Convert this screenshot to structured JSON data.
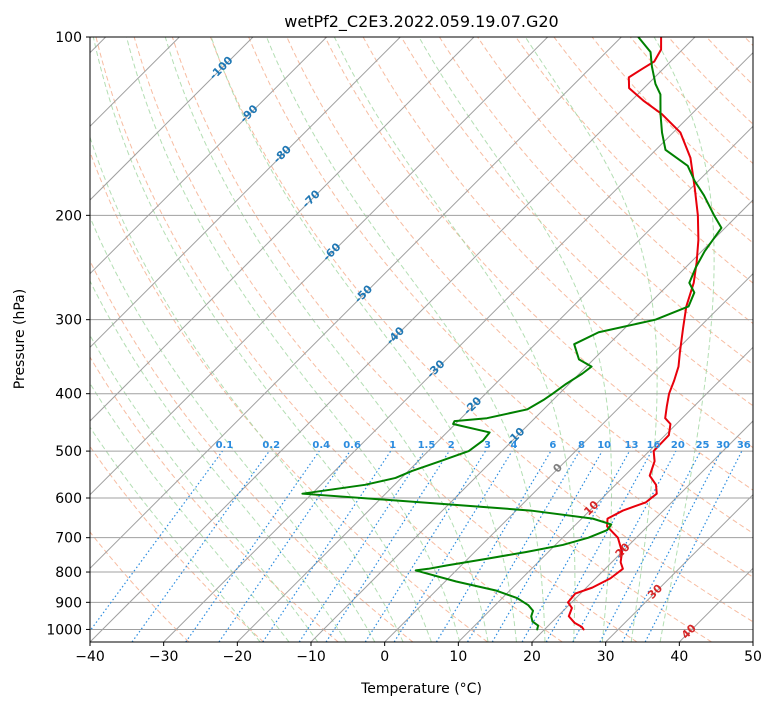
{
  "chart_data": {
    "type": "line",
    "subtype": "skew-T log-P diagram",
    "title": "wetPf2_C2E3.2022.059.19.07.G20",
    "xlabel": "Temperature (°C)",
    "ylabel": "Pressure (hPa)",
    "xlim": [
      -40,
      50
    ],
    "ylim": [
      1050,
      100
    ],
    "y_scale": "log",
    "x_ticks": [
      "−40",
      "−30",
      "−20",
      "−10",
      "0",
      "10",
      "20",
      "30",
      "40",
      "50"
    ],
    "y_ticks": [
      "100",
      "200",
      "300",
      "400",
      "500",
      "600",
      "700",
      "800",
      "900",
      "1000"
    ],
    "grid": true,
    "colors": {
      "temperature": "#e8000b",
      "dewpoint": "#008000",
      "isotherms": "#a0a0a0",
      "dry_adiabats": "#f4a582",
      "moist_adiabats": "#a6d8a6",
      "mixing_ratio": "#2b8cdf",
      "isotherm_labels": "#1f77b4",
      "zero_isotherm_label": "#808080",
      "warm_isotherm_labels": "#d62728"
    },
    "isotherm_labels": [
      {
        "value": "-100",
        "anchor": 100,
        "color": "blue"
      },
      {
        "value": "-90",
        "anchor": 100,
        "color": "blue"
      },
      {
        "value": "-80",
        "anchor": 100,
        "color": "blue"
      },
      {
        "value": "-70",
        "anchor": 100,
        "color": "blue"
      },
      {
        "value": "-60",
        "anchor": 100,
        "color": "blue"
      },
      {
        "value": "-50",
        "anchor": 100,
        "color": "blue"
      },
      {
        "value": "-40",
        "anchor": 100,
        "color": "blue"
      },
      {
        "value": "-30",
        "anchor": 100,
        "color": "blue"
      },
      {
        "value": "-20",
        "anchor": 100,
        "color": "blue"
      },
      {
        "value": "-10",
        "anchor": 100,
        "color": "blue"
      },
      {
        "value": "0",
        "anchor": 100,
        "color": "gray"
      },
      {
        "value": "10",
        "anchor": 100,
        "color": "red"
      },
      {
        "value": "20",
        "anchor": 100,
        "color": "red"
      },
      {
        "value": "30",
        "anchor": 100,
        "color": "red"
      },
      {
        "value": "40",
        "anchor": 100,
        "color": "red"
      }
    ],
    "mixing_ratio_labels": [
      "0.1",
      "0.2",
      "0.4",
      "0.6",
      "1",
      "1.5",
      "2",
      "3",
      "4",
      "6",
      "8",
      "10",
      "13",
      "16",
      "20",
      "25",
      "30",
      "36"
    ],
    "series": [
      {
        "key": "temperature",
        "x_unit": "°C",
        "y_unit": "hPa",
        "points": [
          [
            25.3,
            1000
          ],
          [
            24.7,
            990
          ],
          [
            23.2,
            975
          ],
          [
            21.5,
            950
          ],
          [
            20.8,
            920
          ],
          [
            19.5,
            900
          ],
          [
            19.3,
            870
          ],
          [
            20.8,
            850
          ],
          [
            22.0,
            820
          ],
          [
            22.4,
            790
          ],
          [
            21.2,
            770
          ],
          [
            20.0,
            740
          ],
          [
            17.5,
            700
          ],
          [
            14.5,
            670
          ],
          [
            13.5,
            650
          ],
          [
            14.5,
            630
          ],
          [
            16.5,
            610
          ],
          [
            16.8,
            590
          ],
          [
            15.5,
            570
          ],
          [
            13.4,
            550
          ],
          [
            12.1,
            520
          ],
          [
            10.6,
            500
          ],
          [
            10.5,
            470
          ],
          [
            9.2,
            450
          ],
          [
            7.7,
            440
          ],
          [
            6.3,
            420
          ],
          [
            4.9,
            400
          ],
          [
            3.8,
            380
          ],
          [
            2.5,
            360
          ],
          [
            0.7,
            340
          ],
          [
            -2.1,
            310
          ],
          [
            -4.6,
            285
          ],
          [
            -6.8,
            260
          ],
          [
            -9.2,
            240
          ],
          [
            -12.0,
            220
          ],
          [
            -15.4,
            200
          ],
          [
            -19.5,
            180
          ],
          [
            -24.2,
            160
          ],
          [
            -29.0,
            145
          ],
          [
            -34.0,
            135
          ],
          [
            -38.4,
            128
          ],
          [
            -42.0,
            122
          ],
          [
            -43.5,
            117
          ],
          [
            -42.8,
            113
          ],
          [
            -42.2,
            110
          ],
          [
            -42.9,
            105
          ],
          [
            -44.6,
            100
          ]
        ]
      },
      {
        "key": "dewpoint",
        "x_unit": "°C",
        "y_unit": "hPa",
        "points": [
          [
            19.0,
            1000
          ],
          [
            18.6,
            985
          ],
          [
            17.3,
            970
          ],
          [
            16.4,
            950
          ],
          [
            15.9,
            930
          ],
          [
            14.5,
            910
          ],
          [
            12.0,
            885
          ],
          [
            8.2,
            860
          ],
          [
            1.5,
            830
          ],
          [
            -5.5,
            795
          ],
          [
            -4.0,
            790
          ],
          [
            -2.0,
            780
          ],
          [
            2.5,
            760
          ],
          [
            7.0,
            740
          ],
          [
            11.0,
            720
          ],
          [
            13.5,
            700
          ],
          [
            15.0,
            680
          ],
          [
            14.8,
            665
          ],
          [
            11.5,
            650
          ],
          [
            2.0,
            630
          ],
          [
            -10.0,
            615
          ],
          [
            -31.3,
            590
          ],
          [
            -24.0,
            570
          ],
          [
            -20.8,
            555
          ],
          [
            -19.5,
            540
          ],
          [
            -17.0,
            520
          ],
          [
            -14.5,
            500
          ],
          [
            -14.0,
            480
          ],
          [
            -14.2,
            465
          ],
          [
            -20.3,
            450
          ],
          [
            -20.5,
            445
          ],
          [
            -16.5,
            440
          ],
          [
            -12.2,
            425
          ],
          [
            -11.3,
            410
          ],
          [
            -10.9,
            400
          ],
          [
            -10.4,
            385
          ],
          [
            -9.6,
            370
          ],
          [
            -9.3,
            360
          ],
          [
            -12.0,
            350
          ],
          [
            -14.7,
            330
          ],
          [
            -13.0,
            315
          ],
          [
            -7.0,
            300
          ],
          [
            -4.3,
            285
          ],
          [
            -5.4,
            270
          ],
          [
            -7.4,
            260
          ],
          [
            -8.6,
            245
          ],
          [
            -9.6,
            230
          ],
          [
            -10.5,
            210
          ],
          [
            -13.2,
            200
          ],
          [
            -17.3,
            185
          ],
          [
            -20.5,
            175
          ],
          [
            -23.5,
            165
          ],
          [
            -28.7,
            155
          ],
          [
            -31.5,
            145
          ],
          [
            -34.2,
            135
          ],
          [
            -36.9,
            125
          ],
          [
            -39.0,
            120
          ],
          [
            -41.9,
            112
          ],
          [
            -44.0,
            106
          ],
          [
            -47.7,
            100
          ]
        ]
      }
    ]
  }
}
